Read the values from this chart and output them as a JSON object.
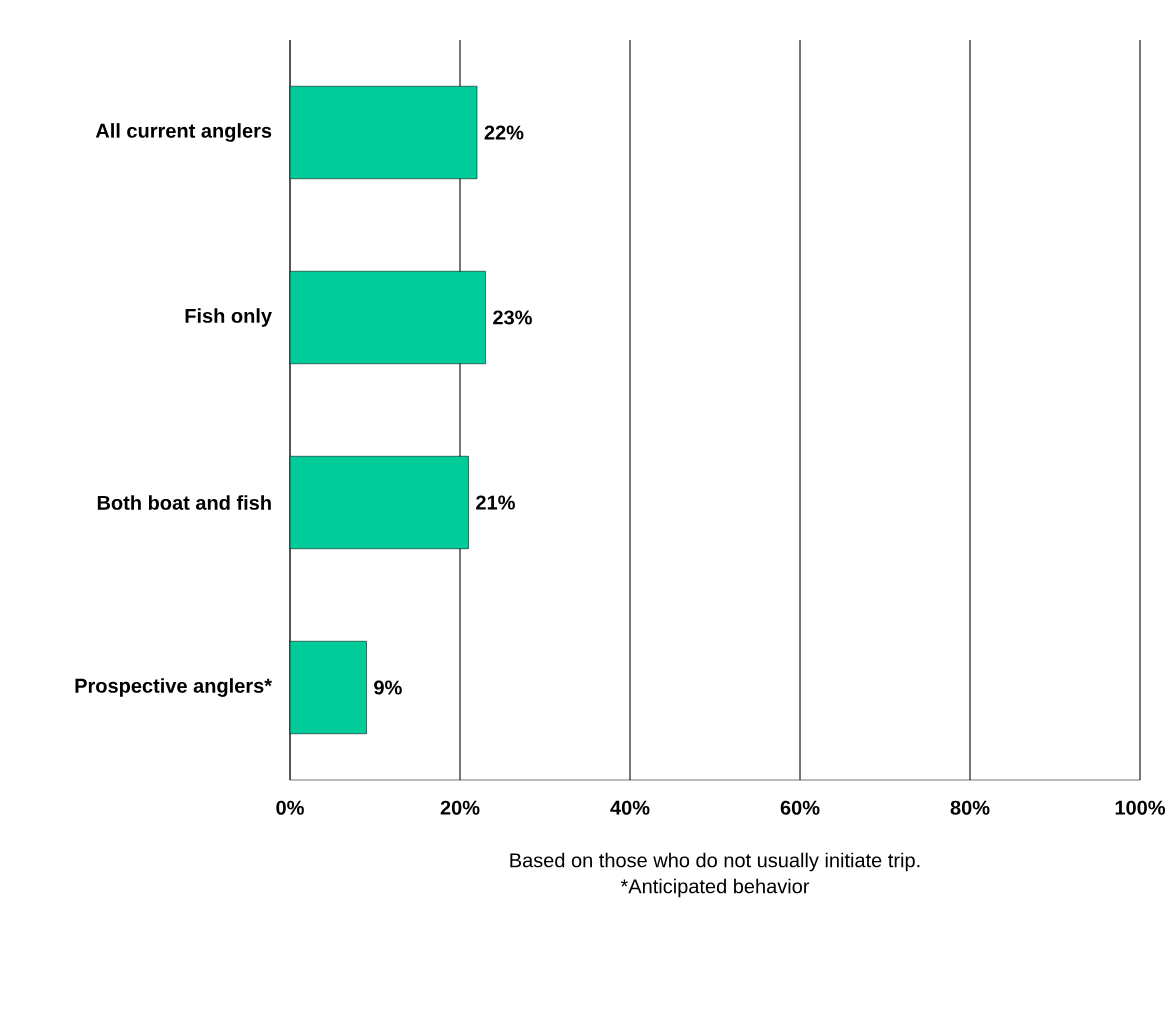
{
  "chart_data": {
    "type": "bar",
    "orientation": "horizontal",
    "categories": [
      "All current anglers",
      "Fish only",
      "Both boat and fish",
      "Prospective anglers*"
    ],
    "values": [
      22,
      23,
      21,
      9
    ],
    "value_labels": [
      "22%",
      "23%",
      "21%",
      "9%"
    ],
    "color": "#00cc99",
    "xlim": [
      0,
      100
    ],
    "xticks": [
      {
        "value": 0,
        "label": "0%"
      },
      {
        "value": 20,
        "label": "20%"
      },
      {
        "value": 40,
        "label": "40%"
      },
      {
        "value": 60,
        "label": "60%"
      },
      {
        "value": 80,
        "label": "80%"
      },
      {
        "value": 100,
        "label": "100%"
      }
    ],
    "grid": "x",
    "annotations": [
      "Based on those who do not usually initiate trip.",
      "*Anticipated behavior"
    ]
  }
}
